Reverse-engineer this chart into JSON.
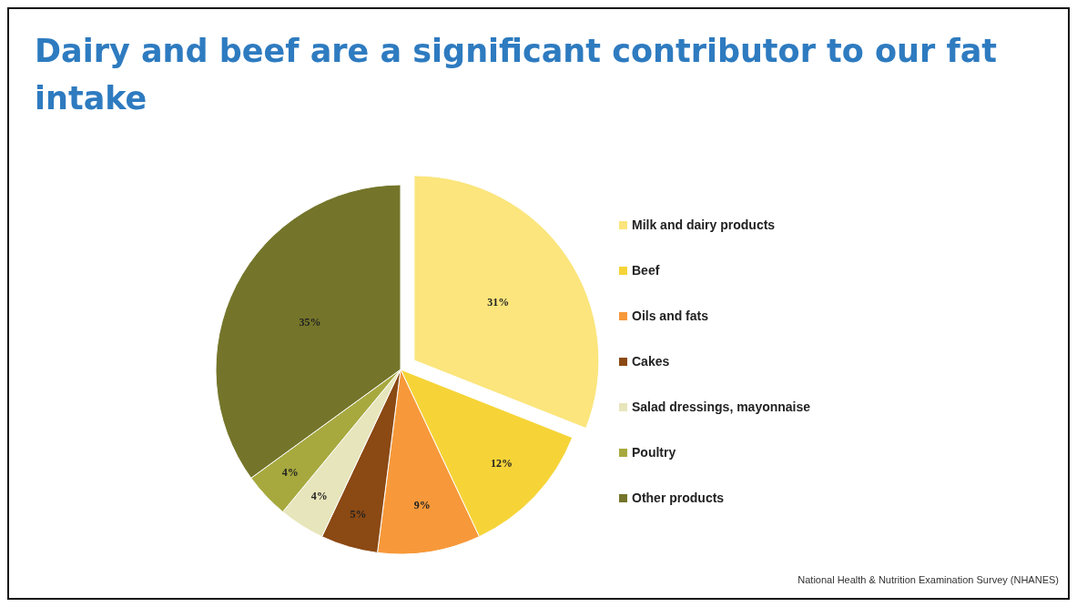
{
  "chart_data": {
    "type": "pie",
    "title": "Dairy and beef are a significant contributor to our fat intake",
    "categories": [
      "Milk and dairy products",
      "Beef",
      "Oils and fats",
      "Cakes",
      "Salad dressings, mayonnaise",
      "Poultry",
      "Other products"
    ],
    "values": [
      31,
      12,
      9,
      5,
      4,
      4,
      35
    ],
    "value_labels": [
      "31%",
      "12%",
      "9%",
      "5%",
      "4%",
      "4%",
      "35%"
    ],
    "colors": [
      "#fbe57c",
      "#f6d438",
      "#f7993a",
      "#8b4913",
      "#e7e5bb",
      "#a7a93f",
      "#74752a"
    ],
    "legend": "right",
    "annotations": [
      "National Health & Nutrition Examination Survey (NHANES)"
    ]
  }
}
